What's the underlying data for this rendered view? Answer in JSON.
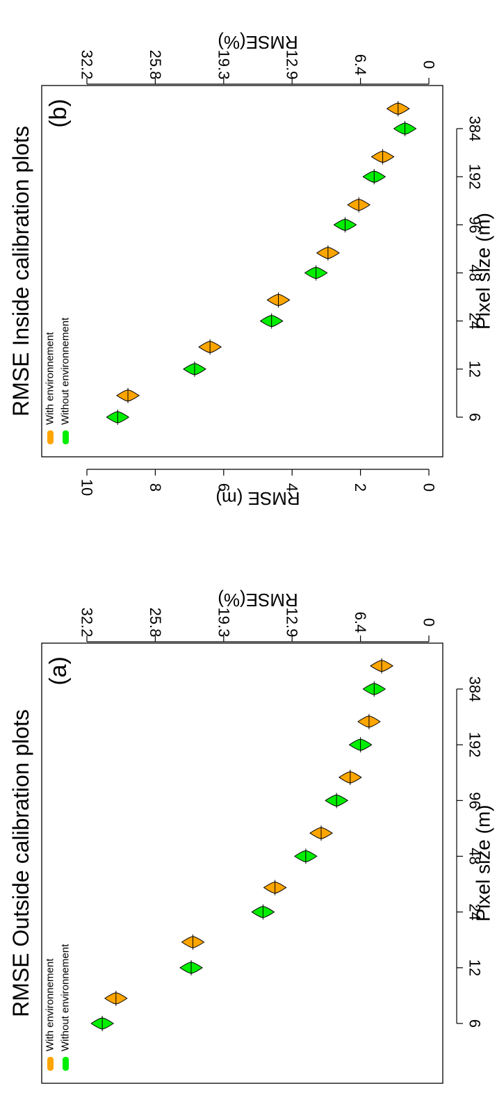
{
  "chart_data": [
    {
      "type": "violin",
      "panel_label": "(a)",
      "title": "RMSE Outside calibration plots",
      "xlabel": "Pixel size (m)",
      "ylabel": "RMSE (m)",
      "ylabel2": "RMSE(%)",
      "categories": [
        "6",
        "12",
        "24",
        "48",
        "96",
        "192",
        "384"
      ],
      "ylim": [
        0,
        11
      ],
      "yticks": [
        "0",
        "2",
        "4",
        "6",
        "8",
        "10"
      ],
      "y2ticks": [
        "0",
        "6.4",
        "12.9",
        "19.3",
        "25.8",
        "32.2"
      ],
      "grid": false,
      "legend_position": "top-left",
      "series": [
        {
          "name": "With environnement",
          "color": "#FFA500",
          "x": [
            8.2,
            16.5,
            32.5,
            64,
            128,
            256,
            512
          ],
          "values": [
            9.15,
            6.9,
            4.5,
            3.15,
            2.3,
            1.75,
            1.38
          ]
        },
        {
          "name": "Without environnement",
          "color": "#00EE00",
          "x": [
            6,
            12,
            24,
            48,
            96,
            192,
            384
          ],
          "values": [
            9.55,
            6.95,
            4.85,
            3.6,
            2.7,
            2.0,
            1.6
          ]
        }
      ]
    },
    {
      "type": "violin",
      "panel_label": "(b)",
      "title": "RMSE Inside calibration plots",
      "xlabel": "Pixel size (m)",
      "ylabel": "RMSE (m)",
      "ylabel2": "RMSE(%)",
      "categories": [
        "6",
        "12",
        "24",
        "48",
        "96",
        "192",
        "384"
      ],
      "ylim": [
        0,
        11
      ],
      "yticks": [
        "0",
        "2",
        "4",
        "6",
        "8",
        "10"
      ],
      "y2ticks": [
        "0",
        "6.4",
        "12.9",
        "19.3",
        "25.8",
        "32.2"
      ],
      "grid": false,
      "legend_position": "top-left",
      "series": [
        {
          "name": "With environnement",
          "color": "#FFA500",
          "x": [
            8.2,
            16.5,
            32.5,
            64,
            128,
            256,
            512
          ],
          "values": [
            8.8,
            6.4,
            4.4,
            2.95,
            2.05,
            1.35,
            0.9
          ]
        },
        {
          "name": "Without environnement",
          "color": "#00EE00",
          "x": [
            6,
            12,
            24,
            48,
            96,
            192,
            384
          ],
          "values": [
            9.1,
            6.85,
            4.6,
            3.3,
            2.45,
            1.6,
            0.7
          ]
        }
      ]
    }
  ]
}
